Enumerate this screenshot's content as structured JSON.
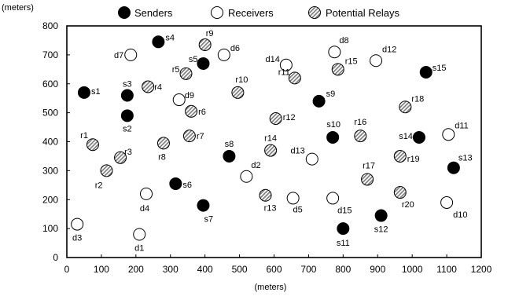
{
  "chart_data": {
    "type": "scatter",
    "xlabel": "(meters)",
    "ylabel": "(meters)",
    "xlim": [
      0,
      1200
    ],
    "ylim": [
      0,
      800
    ],
    "xticks": [
      0,
      100,
      200,
      300,
      400,
      500,
      600,
      700,
      800,
      900,
      1000,
      1100,
      1200
    ],
    "yticks": [
      0,
      100,
      200,
      300,
      400,
      500,
      600,
      700,
      800
    ],
    "grid": false,
    "legend_position": "top",
    "colors": {
      "sender": "#000000",
      "receiver": "#ffffff",
      "relay": "#9a9a9a"
    },
    "series": [
      {
        "name": "Senders",
        "kind": "sender",
        "points": [
          {
            "label": "s1",
            "x": 50,
            "y": 570
          },
          {
            "label": "s2",
            "x": 175,
            "y": 490
          },
          {
            "label": "s3",
            "x": 175,
            "y": 560
          },
          {
            "label": "s4",
            "x": 265,
            "y": 745
          },
          {
            "label": "s5",
            "x": 395,
            "y": 670
          },
          {
            "label": "s6",
            "x": 315,
            "y": 255
          },
          {
            "label": "s7",
            "x": 395,
            "y": 180
          },
          {
            "label": "s8",
            "x": 470,
            "y": 350
          },
          {
            "label": "s9",
            "x": 730,
            "y": 540
          },
          {
            "label": "s10",
            "x": 770,
            "y": 415
          },
          {
            "label": "s11",
            "x": 800,
            "y": 100
          },
          {
            "label": "s12",
            "x": 910,
            "y": 145
          },
          {
            "label": "s13",
            "x": 1120,
            "y": 310
          },
          {
            "label": "s14",
            "x": 1020,
            "y": 415
          },
          {
            "label": "s15",
            "x": 1040,
            "y": 640
          }
        ]
      },
      {
        "name": "Receivers",
        "kind": "receiver",
        "points": [
          {
            "label": "d1",
            "x": 210,
            "y": 80
          },
          {
            "label": "d2",
            "x": 520,
            "y": 280
          },
          {
            "label": "d3",
            "x": 30,
            "y": 115
          },
          {
            "label": "d4",
            "x": 230,
            "y": 220
          },
          {
            "label": "d5",
            "x": 655,
            "y": 205
          },
          {
            "label": "d6",
            "x": 455,
            "y": 700
          },
          {
            "label": "d7",
            "x": 185,
            "y": 700
          },
          {
            "label": "d8",
            "x": 775,
            "y": 710
          },
          {
            "label": "d9",
            "x": 325,
            "y": 545
          },
          {
            "label": "d10",
            "x": 1100,
            "y": 190
          },
          {
            "label": "d11",
            "x": 1105,
            "y": 425
          },
          {
            "label": "d12",
            "x": 895,
            "y": 680
          },
          {
            "label": "d13",
            "x": 710,
            "y": 340
          },
          {
            "label": "d14",
            "x": 635,
            "y": 665
          },
          {
            "label": "d15",
            "x": 770,
            "y": 205
          }
        ]
      },
      {
        "name": "Potential Relays",
        "kind": "relay",
        "points": [
          {
            "label": "r1",
            "x": 75,
            "y": 390
          },
          {
            "label": "r2",
            "x": 115,
            "y": 300
          },
          {
            "label": "r3",
            "x": 155,
            "y": 345
          },
          {
            "label": "r4",
            "x": 235,
            "y": 590
          },
          {
            "label": "r5",
            "x": 345,
            "y": 635
          },
          {
            "label": "r6",
            "x": 360,
            "y": 505
          },
          {
            "label": "r7",
            "x": 355,
            "y": 420
          },
          {
            "label": "r8",
            "x": 280,
            "y": 395
          },
          {
            "label": "r9",
            "x": 400,
            "y": 735
          },
          {
            "label": "r10",
            "x": 495,
            "y": 570
          },
          {
            "label": "r11",
            "x": 660,
            "y": 620
          },
          {
            "label": "r12",
            "x": 605,
            "y": 480
          },
          {
            "label": "r13",
            "x": 575,
            "y": 215
          },
          {
            "label": "r14",
            "x": 590,
            "y": 370
          },
          {
            "label": "r15",
            "x": 785,
            "y": 650
          },
          {
            "label": "r16",
            "x": 850,
            "y": 420
          },
          {
            "label": "r17",
            "x": 870,
            "y": 270
          },
          {
            "label": "r18",
            "x": 980,
            "y": 520
          },
          {
            "label": "r19",
            "x": 965,
            "y": 350
          },
          {
            "label": "r20",
            "x": 965,
            "y": 225
          }
        ]
      }
    ]
  }
}
